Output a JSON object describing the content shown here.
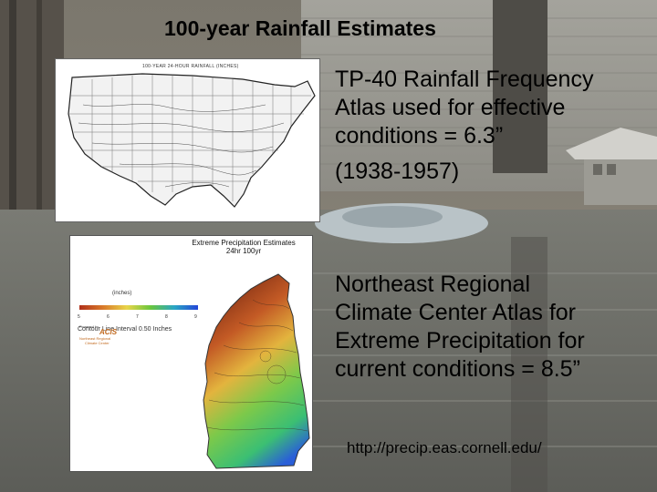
{
  "slide": {
    "title": "100-year Rainfall Estimates",
    "text1_lines": [
      "TP-40 Rainfall Frequency",
      "Atlas used for effective",
      "conditions = 6.3”"
    ],
    "text1_years": "(1938-1957)",
    "text2_lines": [
      "Northeast Regional",
      "Climate Center  Atlas for",
      "Extreme Precipitation for",
      "current conditions = 8.5”"
    ],
    "url": "http://precip.eas.cornell.edu/"
  },
  "us_map": {
    "caption": "100-YEAR 24-HOUR RAINFALL (INCHES)"
  },
  "nh_map": {
    "title_line1": "Extreme Precipitation Estimates",
    "title_line2": "24hr 100yr",
    "legend_label": "(inches)",
    "legend_ticks": [
      "5",
      "6",
      "7",
      "8",
      "9"
    ],
    "contour_note": "Contour Line Interval 0.50 Inches",
    "logo_powered": "Powered by",
    "logo_acis": "ACIS",
    "logo_line1": "Northeast Regional",
    "logo_line2": "Climate Center"
  },
  "colors": {
    "background_sky": "#8a8478",
    "water": "#6d6e68",
    "title_text": "#000000"
  }
}
